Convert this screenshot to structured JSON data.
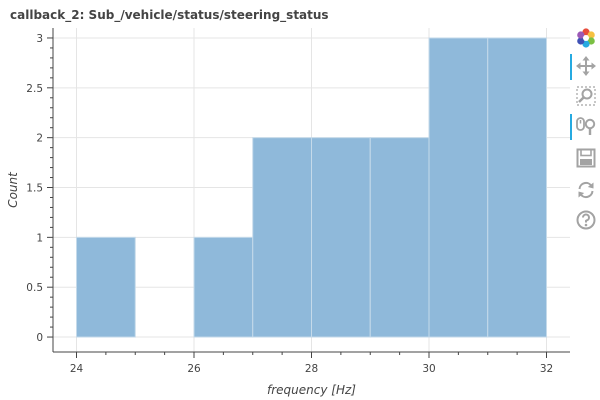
{
  "title": "callback_2: Sub_/vehicle/status/steering_status",
  "colors": {
    "bar_fill": "#8fb9da",
    "bar_stroke": "#c5daea",
    "axis": "#444444",
    "grid": "#e5e5e5",
    "toolbar_active": "#26aae1",
    "toolbar_icon": "#a3a3a3"
  },
  "toolbar": {
    "tools": [
      {
        "icon": "bokeh-logo-icon",
        "active": false
      },
      {
        "icon": "pan-icon",
        "active": true
      },
      {
        "icon": "box-zoom-icon",
        "active": false
      },
      {
        "icon": "wheel-zoom-icon",
        "active": true
      },
      {
        "icon": "save-icon",
        "active": false
      },
      {
        "icon": "reset-icon",
        "active": false
      },
      {
        "icon": "help-icon",
        "active": false
      }
    ]
  },
  "chart_data": {
    "type": "bar",
    "title": "callback_2: Sub_/vehicle/status/steering_status",
    "xlabel": "frequency [Hz]",
    "ylabel": "Count",
    "xlim": [
      23.6,
      32.4
    ],
    "ylim": [
      -0.15,
      3.1
    ],
    "xticks": [
      24,
      26,
      28,
      30,
      32
    ],
    "yticks": [
      0,
      0.5,
      1,
      1.5,
      2,
      2.5,
      3
    ],
    "grid": true,
    "bins": [
      {
        "left": 24,
        "right": 25,
        "count": 1
      },
      {
        "left": 25,
        "right": 26,
        "count": 0
      },
      {
        "left": 26,
        "right": 27,
        "count": 1
      },
      {
        "left": 27,
        "right": 28,
        "count": 2
      },
      {
        "left": 28,
        "right": 29,
        "count": 2
      },
      {
        "left": 29,
        "right": 30,
        "count": 2
      },
      {
        "left": 30,
        "right": 31,
        "count": 3
      },
      {
        "left": 31,
        "right": 32,
        "count": 3
      }
    ]
  }
}
